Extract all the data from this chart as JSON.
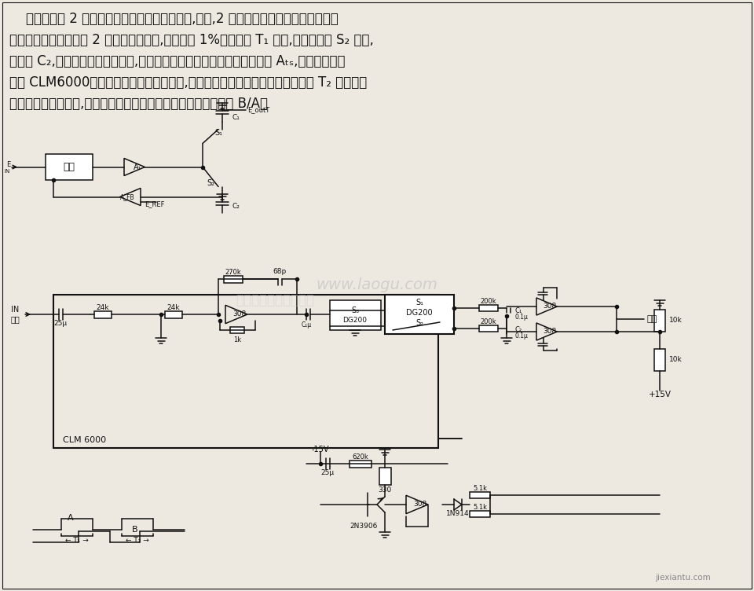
{
  "bg_color": "#ede8e0",
  "line_color": "#111111",
  "desc": [
    "    本电路用于 2 个信号共用同一输入线路的情况,例如,2 只发光二极管交替地照射到单只",
    "光电池等。本电路测量 2 个未知数之比值,精度优于 1%。在周期 T₁ 期间,输入信号经 S₂ 采样,",
    "存贮在 C₂,以便与基准电压作比较,所得到的结果经过可切换的放大器网络 Aₜₛ,加到增益控制",
    "元件 CLM6000。该闭合环路调节信号增益,使比值的分母等于基准电压。与时间 T₂ 相对应的",
    "分子乘以同样的增益,所以分于的输出正比于所需要的未知数比值 B/A。"
  ],
  "watermark": "www.laogu.com",
  "footer": "jiexiantu.com"
}
